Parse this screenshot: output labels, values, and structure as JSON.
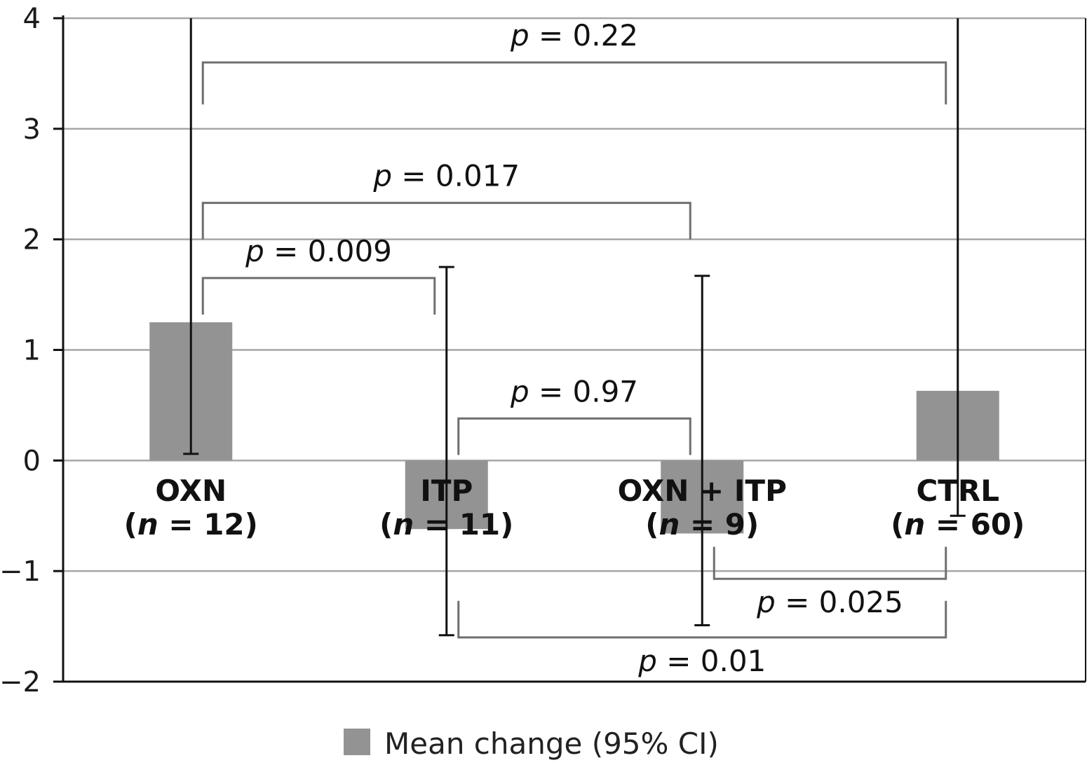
{
  "chart_data": {
    "type": "bar",
    "categories": [
      {
        "name": "OXN",
        "n_label": "n",
        "n_rest": " = 12)"
      },
      {
        "name": "ITP",
        "n_label": "n",
        "n_rest": " = 11)"
      },
      {
        "name": "OXN + ITP",
        "n_label": "n",
        "n_rest": " = 9)"
      },
      {
        "name": "CTRL",
        "n_label": "n",
        "n_rest": " = 60)"
      }
    ],
    "series": [
      {
        "name": "Mean change (95% CI)",
        "values": [
          1.25,
          -0.62,
          -0.66,
          0.63
        ],
        "ci_low": [
          0.06,
          -1.58,
          -1.49,
          -0.5
        ],
        "ci_high": [
          4.0,
          1.75,
          1.67,
          4.0
        ]
      }
    ],
    "ylim": [
      -2,
      4
    ],
    "yticks": [
      -2,
      -1,
      0,
      1,
      2,
      3,
      4
    ],
    "ytick_labels": [
      "−2",
      "−1",
      "0",
      "1",
      "2",
      "3",
      "4"
    ],
    "grid": true,
    "legend_position": "bottom-center",
    "comparisons": [
      {
        "from": 0,
        "to": 3,
        "p_symbol": "p",
        "p_rest": " = 0.22",
        "direction": "above",
        "bracket_y": 3.6,
        "leg_y": 3.22
      },
      {
        "from": 0,
        "to": 2,
        "p_symbol": "p",
        "p_rest": " = 0.017",
        "direction": "above",
        "bracket_y": 2.33,
        "leg_y": 2.0
      },
      {
        "from": 0,
        "to": 1,
        "p_symbol": "p",
        "p_rest": " = 0.009",
        "direction": "above",
        "bracket_y": 1.65,
        "leg_y": 1.32
      },
      {
        "from": 1,
        "to": 2,
        "p_symbol": "p",
        "p_rest": " = 0.97",
        "direction": "above",
        "bracket_y": 0.38,
        "leg_y": 0.05
      },
      {
        "from": 2,
        "to": 3,
        "p_symbol": "p",
        "p_rest": " = 0.025",
        "direction": "below",
        "bracket_y": -1.07,
        "leg_y": -0.78
      },
      {
        "from": 1,
        "to": 3,
        "p_symbol": "p",
        "p_rest": " = 0.01",
        "direction": "below",
        "bracket_y": -1.6,
        "leg_y": -1.27
      }
    ],
    "colors": {
      "bar": "#939393",
      "grid": "#a6a6a6",
      "bracket": "#6f6f6f",
      "errorbar": "#111111",
      "axis": "#111111"
    }
  }
}
